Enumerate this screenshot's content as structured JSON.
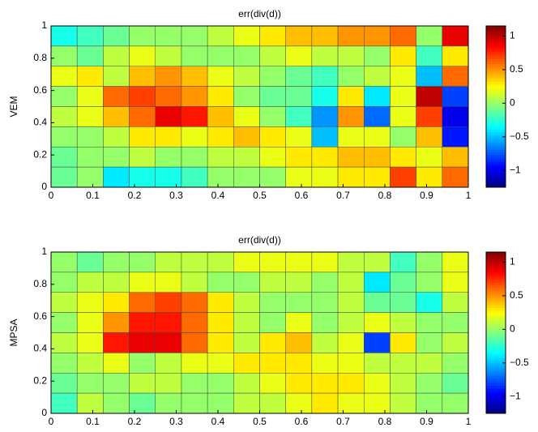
{
  "chart_data": [
    {
      "type": "heatmap",
      "title": "err(div(d))",
      "ylabel": "VEM",
      "colormap": "jet",
      "xlim": [
        0,
        1
      ],
      "ylim": [
        0,
        1
      ],
      "xticks": [
        0,
        0.1,
        0.2,
        0.3,
        0.4,
        0.5,
        0.6,
        0.7,
        0.8,
        0.9,
        1
      ],
      "yticks": [
        0,
        0.2,
        0.4,
        0.6,
        0.8,
        1
      ],
      "clim": [
        -1.25,
        1.15
      ],
      "cticks": [
        {
          "value": -1,
          "label": "−1"
        },
        {
          "value": -0.5,
          "label": "−0.5"
        },
        0,
        0.5,
        1
      ],
      "values": [
        [
          -0.3,
          -0.2,
          -0.1,
          0,
          0,
          0,
          0.1,
          0.2,
          0.3,
          0.4,
          0.4,
          0.5,
          0.5,
          0.6,
          0,
          0.9
        ],
        [
          0,
          -0.1,
          0.1,
          0.2,
          0.1,
          0,
          0,
          0,
          0.1,
          0.2,
          0.1,
          0.1,
          0,
          0.3,
          -0.2,
          0.3
        ],
        [
          0.2,
          0.3,
          0.1,
          0.4,
          0.5,
          0.4,
          0.2,
          0.1,
          0,
          -0.1,
          -0.2,
          0,
          0.1,
          0.2,
          -0.5,
          0.6
        ],
        [
          0,
          0.2,
          0.6,
          0.7,
          0.6,
          0.5,
          0.3,
          0,
          -0.1,
          -0.1,
          -0.3,
          0.3,
          -0.4,
          0.2,
          1.0,
          -0.8
        ],
        [
          0.1,
          0.2,
          0.4,
          0.6,
          0.9,
          0.8,
          0.4,
          0.2,
          0,
          -0.2,
          -0.6,
          0.5,
          -0.7,
          0.2,
          0.7,
          -1.0
        ],
        [
          0,
          0,
          0.1,
          0.3,
          0.3,
          0.2,
          0.3,
          0.4,
          0.3,
          0.2,
          -0.5,
          0.2,
          0.2,
          0,
          0.4,
          -0.9
        ],
        [
          -0.1,
          0,
          0,
          0.1,
          0,
          0,
          0.1,
          0.1,
          0.2,
          0.3,
          0.3,
          0.4,
          0.4,
          0.3,
          0.2,
          0.4
        ],
        [
          -0.1,
          0,
          -0.4,
          -0.3,
          -0.3,
          -0.2,
          0,
          0,
          0,
          0.2,
          0.2,
          0.3,
          0.3,
          0.7,
          0.3,
          0.6
        ]
      ]
    },
    {
      "type": "heatmap",
      "title": "err(div(d))",
      "ylabel": "MPSA",
      "colormap": "jet",
      "xlim": [
        0,
        1
      ],
      "ylim": [
        0,
        1
      ],
      "xticks": [
        0,
        0.1,
        0.2,
        0.3,
        0.4,
        0.5,
        0.6,
        0.7,
        0.8,
        0.9,
        1
      ],
      "yticks": [
        0,
        0.2,
        0.4,
        0.6,
        0.8,
        1
      ],
      "clim": [
        -1.25,
        1.15
      ],
      "cticks": [
        {
          "value": -1,
          "label": "−1"
        },
        {
          "value": -0.5,
          "label": "−0.5"
        },
        0,
        0.5,
        1
      ],
      "values": [
        [
          0,
          -0.1,
          0,
          0,
          0.1,
          0.1,
          0.1,
          0.2,
          0.2,
          0.2,
          0.2,
          0.1,
          0.1,
          -0.2,
          0,
          0.2
        ],
        [
          0,
          0.1,
          0.1,
          0.2,
          0.2,
          0.1,
          0,
          0,
          0.1,
          0.1,
          0,
          0.1,
          -0.4,
          -0.1,
          0,
          0.2
        ],
        [
          0.1,
          0.2,
          0.3,
          0.6,
          0.7,
          0.6,
          0.3,
          0.1,
          0,
          0,
          0,
          0.1,
          -0.1,
          -0.1,
          -0.3,
          0.1
        ],
        [
          0,
          0.2,
          0.5,
          0.8,
          0.8,
          0.6,
          0.3,
          0.1,
          0,
          0.2,
          0,
          0.1,
          0.2,
          0.1,
          0,
          0
        ],
        [
          0.1,
          0.2,
          0.8,
          0.9,
          0.9,
          0.6,
          0.3,
          0.1,
          0.3,
          0.4,
          0.1,
          0.2,
          -0.8,
          0.3,
          0,
          0.1
        ],
        [
          0,
          0.1,
          0.2,
          0,
          0.1,
          0.2,
          0.2,
          0.3,
          0.3,
          0.3,
          0.2,
          0.2,
          0.1,
          0.1,
          0.1,
          0
        ],
        [
          -0.1,
          0,
          0,
          0.1,
          0.1,
          0,
          0,
          0.1,
          0.2,
          0.3,
          0.3,
          0.3,
          0.2,
          0.1,
          0,
          -0.1
        ],
        [
          -0.2,
          0.1,
          0,
          -0.1,
          0,
          0,
          0,
          0.1,
          0.1,
          0.2,
          0.3,
          0.2,
          0.2,
          0.1,
          0,
          0
        ]
      ]
    }
  ]
}
